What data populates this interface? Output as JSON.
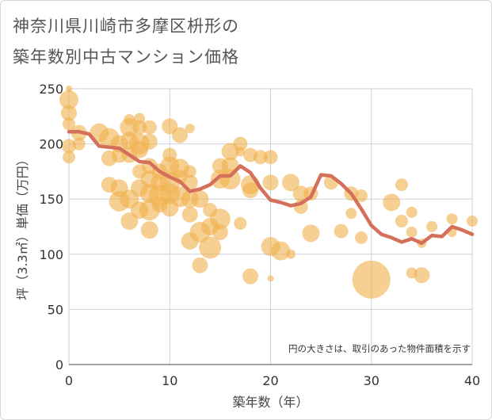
{
  "chart": {
    "title_line1": "神奈川県川崎市多摩区枡形の",
    "title_line2": "築年数別中古マンション価格",
    "note": "円の大きさは、取引のあった物件面積を示す"
  },
  "colors": {
    "bubble": "#f0b24f",
    "line": "#d4705a",
    "grid": "#c9d3dc",
    "plot_bg": "#ffffff",
    "text": "#333333"
  },
  "chart_data": {
    "type": "scatter",
    "title": "神奈川県川崎市多摩区枡形の築年数別中古マンション価格",
    "xlabel": "築年数（年）",
    "ylabel": "坪（3.3㎡）単価（万円）",
    "xlim": [
      0,
      40
    ],
    "ylim": [
      0,
      250
    ],
    "xticks": [
      0,
      10,
      20,
      30,
      40
    ],
    "yticks": [
      0,
      50,
      100,
      150,
      200,
      250
    ],
    "grid": true,
    "bubbles": [
      {
        "x": 0,
        "y": 240,
        "s": 12
      },
      {
        "x": 0,
        "y": 228,
        "s": 10
      },
      {
        "x": 0,
        "y": 218,
        "s": 8
      },
      {
        "x": 0,
        "y": 198,
        "s": 9
      },
      {
        "x": 0,
        "y": 188,
        "s": 8
      },
      {
        "x": 0,
        "y": 250,
        "s": 4
      },
      {
        "x": 1,
        "y": 210,
        "s": 10
      },
      {
        "x": 1,
        "y": 200,
        "s": 8
      },
      {
        "x": 3,
        "y": 210,
        "s": 12
      },
      {
        "x": 4,
        "y": 205,
        "s": 13
      },
      {
        "x": 4,
        "y": 187,
        "s": 10
      },
      {
        "x": 4,
        "y": 163,
        "s": 10
      },
      {
        "x": 5,
        "y": 200,
        "s": 11
      },
      {
        "x": 5,
        "y": 190,
        "s": 10
      },
      {
        "x": 5,
        "y": 160,
        "s": 11
      },
      {
        "x": 5,
        "y": 148,
        "s": 13
      },
      {
        "x": 6,
        "y": 222,
        "s": 7
      },
      {
        "x": 6,
        "y": 215,
        "s": 12
      },
      {
        "x": 6,
        "y": 203,
        "s": 11
      },
      {
        "x": 6,
        "y": 190,
        "s": 10
      },
      {
        "x": 6,
        "y": 150,
        "s": 12
      },
      {
        "x": 6,
        "y": 130,
        "s": 11
      },
      {
        "x": 7,
        "y": 223,
        "s": 7
      },
      {
        "x": 7,
        "y": 215,
        "s": 9
      },
      {
        "x": 7,
        "y": 200,
        "s": 13
      },
      {
        "x": 7,
        "y": 195,
        "s": 11
      },
      {
        "x": 7,
        "y": 175,
        "s": 9
      },
      {
        "x": 7,
        "y": 160,
        "s": 11
      },
      {
        "x": 7,
        "y": 140,
        "s": 11
      },
      {
        "x": 8,
        "y": 215,
        "s": 9
      },
      {
        "x": 8,
        "y": 202,
        "s": 10
      },
      {
        "x": 8,
        "y": 180,
        "s": 10
      },
      {
        "x": 8,
        "y": 168,
        "s": 11
      },
      {
        "x": 8,
        "y": 155,
        "s": 12
      },
      {
        "x": 8,
        "y": 140,
        "s": 13
      },
      {
        "x": 8,
        "y": 122,
        "s": 11
      },
      {
        "x": 9,
        "y": 175,
        "s": 10
      },
      {
        "x": 9,
        "y": 165,
        "s": 11
      },
      {
        "x": 9,
        "y": 153,
        "s": 14
      },
      {
        "x": 9,
        "y": 145,
        "s": 10
      },
      {
        "x": 10,
        "y": 216,
        "s": 10
      },
      {
        "x": 10,
        "y": 190,
        "s": 9
      },
      {
        "x": 10,
        "y": 180,
        "s": 12
      },
      {
        "x": 10,
        "y": 165,
        "s": 13
      },
      {
        "x": 10,
        "y": 155,
        "s": 13
      },
      {
        "x": 10,
        "y": 142,
        "s": 11
      },
      {
        "x": 11,
        "y": 208,
        "s": 10
      },
      {
        "x": 11,
        "y": 178,
        "s": 12
      },
      {
        "x": 11,
        "y": 170,
        "s": 9
      },
      {
        "x": 11,
        "y": 152,
        "s": 13
      },
      {
        "x": 12,
        "y": 214,
        "s": 6
      },
      {
        "x": 12,
        "y": 175,
        "s": 8
      },
      {
        "x": 12,
        "y": 165,
        "s": 10
      },
      {
        "x": 12,
        "y": 150,
        "s": 11
      },
      {
        "x": 12,
        "y": 136,
        "s": 10
      },
      {
        "x": 12,
        "y": 112,
        "s": 11
      },
      {
        "x": 13,
        "y": 150,
        "s": 11
      },
      {
        "x": 13,
        "y": 120,
        "s": 13
      },
      {
        "x": 13,
        "y": 90,
        "s": 10
      },
      {
        "x": 14,
        "y": 140,
        "s": 9
      },
      {
        "x": 14,
        "y": 125,
        "s": 11
      },
      {
        "x": 14,
        "y": 106,
        "s": 14
      },
      {
        "x": 15,
        "y": 180,
        "s": 10
      },
      {
        "x": 15,
        "y": 168,
        "s": 12
      },
      {
        "x": 15,
        "y": 132,
        "s": 13
      },
      {
        "x": 15,
        "y": 120,
        "s": 10
      },
      {
        "x": 16,
        "y": 193,
        "s": 11
      },
      {
        "x": 16,
        "y": 180,
        "s": 11
      },
      {
        "x": 16,
        "y": 168,
        "s": 13
      },
      {
        "x": 17,
        "y": 200,
        "s": 9
      },
      {
        "x": 17,
        "y": 193,
        "s": 6
      },
      {
        "x": 17,
        "y": 128,
        "s": 8
      },
      {
        "x": 18,
        "y": 190,
        "s": 9
      },
      {
        "x": 18,
        "y": 163,
        "s": 12
      },
      {
        "x": 18,
        "y": 158,
        "s": 10
      },
      {
        "x": 18,
        "y": 80,
        "s": 10
      },
      {
        "x": 19,
        "y": 188,
        "s": 9
      },
      {
        "x": 20,
        "y": 188,
        "s": 9
      },
      {
        "x": 20,
        "y": 165,
        "s": 10
      },
      {
        "x": 20,
        "y": 107,
        "s": 12
      },
      {
        "x": 20,
        "y": 78,
        "s": 4
      },
      {
        "x": 21,
        "y": 103,
        "s": 12
      },
      {
        "x": 22,
        "y": 165,
        "s": 11
      },
      {
        "x": 22,
        "y": 100,
        "s": 6
      },
      {
        "x": 23,
        "y": 155,
        "s": 10
      },
      {
        "x": 23,
        "y": 143,
        "s": 9
      },
      {
        "x": 24,
        "y": 155,
        "s": 9
      },
      {
        "x": 24,
        "y": 119,
        "s": 11
      },
      {
        "x": 26,
        "y": 165,
        "s": 9
      },
      {
        "x": 27,
        "y": 121,
        "s": 9
      },
      {
        "x": 28,
        "y": 155,
        "s": 9
      },
      {
        "x": 28,
        "y": 137,
        "s": 7
      },
      {
        "x": 29,
        "y": 153,
        "s": 8
      },
      {
        "x": 29,
        "y": 115,
        "s": 8
      },
      {
        "x": 30,
        "y": 77,
        "s": 24
      },
      {
        "x": 32,
        "y": 147,
        "s": 11
      },
      {
        "x": 33,
        "y": 163,
        "s": 8
      },
      {
        "x": 33,
        "y": 130,
        "s": 8
      },
      {
        "x": 34,
        "y": 138,
        "s": 7
      },
      {
        "x": 34,
        "y": 120,
        "s": 7
      },
      {
        "x": 34,
        "y": 83,
        "s": 7
      },
      {
        "x": 35,
        "y": 81,
        "s": 10
      },
      {
        "x": 35,
        "y": 110,
        "s": 6
      },
      {
        "x": 36,
        "y": 125,
        "s": 7
      },
      {
        "x": 38,
        "y": 132,
        "s": 7
      },
      {
        "x": 38,
        "y": 120,
        "s": 6
      },
      {
        "x": 40,
        "y": 130,
        "s": 7
      }
    ],
    "series": [
      {
        "x": [
          0,
          1,
          2,
          3,
          4,
          5,
          6,
          7,
          8,
          9,
          10,
          11,
          12,
          13,
          14,
          15,
          16,
          17,
          18,
          19,
          20,
          21,
          22,
          23,
          24,
          25,
          26,
          27,
          28,
          29,
          30,
          31,
          32,
          33,
          34,
          35,
          36,
          37,
          38,
          39,
          40
        ],
        "y": [
          211,
          211,
          209,
          198,
          197,
          196,
          190,
          184,
          183,
          175,
          170,
          166,
          157,
          159,
          163,
          171,
          171,
          180,
          174,
          160,
          149,
          147,
          144,
          146,
          152,
          172,
          171,
          164,
          155,
          141,
          126,
          118,
          115,
          111,
          114,
          110,
          117,
          116,
          125,
          122,
          118
        ]
      }
    ]
  }
}
